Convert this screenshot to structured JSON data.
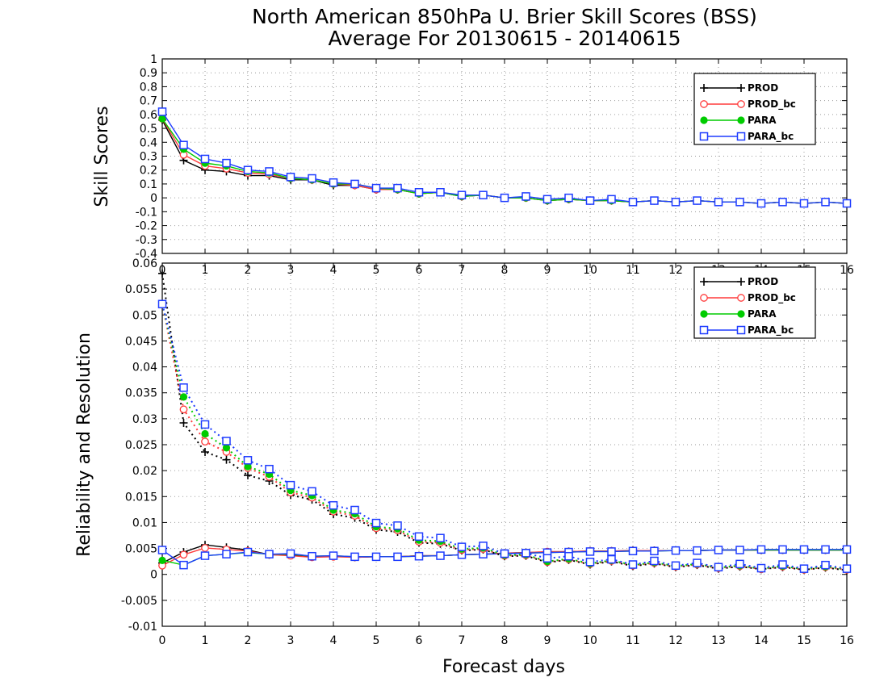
{
  "title_line1": "North American 850hPa U. Brier Skill Scores (BSS)",
  "title_line2": "Average For 20130615 - 20140615",
  "xlabel": "Forecast days",
  "colors": {
    "PROD": "#000000",
    "PROD_bc": "#ff3c3c",
    "PARA": "#00cc00",
    "PARA_bc": "#1e3cff"
  },
  "chart_data": [
    {
      "type": "line",
      "ylabel": "Skill Scores",
      "xlim": [
        0,
        16
      ],
      "ylim": [
        -0.4,
        1
      ],
      "xticks": [
        0,
        1,
        2,
        3,
        4,
        5,
        6,
        7,
        8,
        9,
        10,
        11,
        12,
        13,
        14,
        15,
        16
      ],
      "yticks": [
        -0.4,
        -0.3,
        -0.2,
        -0.1,
        0,
        0.1,
        0.2,
        0.3,
        0.4,
        0.5,
        0.6,
        0.7,
        0.8,
        0.9,
        1
      ],
      "ytick_labels": [
        "-0.4",
        "-0.3",
        "-0.2",
        "-0.1",
        "0",
        "0.1",
        "0.2",
        "0.3",
        "0.4",
        "0.5",
        "0.6",
        "0.7",
        "0.8",
        "0.9",
        "1"
      ],
      "grid": true,
      "legend_position": "top-right",
      "x": [
        0,
        0.5,
        1,
        1.5,
        2,
        2.5,
        3,
        3.5,
        4,
        4.5,
        5,
        5.5,
        6,
        6.5,
        7,
        7.5,
        8,
        8.5,
        9,
        9.5,
        10,
        10.5,
        11,
        11.5,
        12,
        12.5,
        13,
        13.5,
        14,
        14.5,
        15,
        15.5,
        16
      ],
      "series": [
        {
          "name": "PROD",
          "marker": "plus",
          "line": "solid",
          "values": [
            0.56,
            0.27,
            0.2,
            0.19,
            0.16,
            0.16,
            0.13,
            0.13,
            0.09,
            0.09,
            0.06,
            0.06,
            0.03,
            0.04,
            0.01,
            0.02,
            0.0,
            0.0,
            -0.02,
            -0.01,
            -0.02,
            -0.02,
            -0.03,
            -0.02,
            -0.03,
            -0.02,
            -0.03,
            -0.03,
            -0.04,
            -0.03,
            -0.04,
            -0.03,
            -0.04
          ]
        },
        {
          "name": "PROD_bc",
          "marker": "open-circle",
          "line": "solid",
          "values": [
            0.57,
            0.31,
            0.23,
            0.21,
            0.18,
            0.17,
            0.14,
            0.13,
            0.1,
            0.09,
            0.06,
            0.06,
            0.03,
            0.04,
            0.01,
            0.02,
            0.0,
            0.0,
            -0.02,
            -0.01,
            -0.02,
            -0.02,
            -0.03,
            -0.02,
            -0.03,
            -0.02,
            -0.03,
            -0.03,
            -0.04,
            -0.03,
            -0.04,
            -0.03,
            -0.04
          ]
        },
        {
          "name": "PARA",
          "marker": "filled-circle",
          "line": "solid",
          "values": [
            0.57,
            0.35,
            0.25,
            0.23,
            0.19,
            0.18,
            0.14,
            0.13,
            0.1,
            0.1,
            0.07,
            0.06,
            0.03,
            0.04,
            0.01,
            0.02,
            0.0,
            0.0,
            -0.02,
            -0.01,
            -0.02,
            -0.02,
            -0.03,
            -0.02,
            -0.03,
            -0.02,
            -0.03,
            -0.03,
            -0.04,
            -0.03,
            -0.04,
            -0.03,
            -0.04
          ]
        },
        {
          "name": "PARA_bc",
          "marker": "open-square",
          "line": "solid",
          "values": [
            0.62,
            0.38,
            0.28,
            0.25,
            0.2,
            0.19,
            0.15,
            0.14,
            0.11,
            0.1,
            0.07,
            0.07,
            0.04,
            0.04,
            0.02,
            0.02,
            0.0,
            0.01,
            -0.01,
            0.0,
            -0.02,
            -0.01,
            -0.03,
            -0.02,
            -0.03,
            -0.02,
            -0.03,
            -0.03,
            -0.04,
            -0.03,
            -0.04,
            -0.03,
            -0.04
          ]
        }
      ]
    },
    {
      "type": "line",
      "ylabel": "Reliability and Resolution",
      "xlim": [
        0,
        16
      ],
      "ylim": [
        -0.01,
        0.06
      ],
      "xticks": [
        0,
        1,
        2,
        3,
        4,
        5,
        6,
        7,
        8,
        9,
        10,
        11,
        12,
        13,
        14,
        15,
        16
      ],
      "yticks": [
        -0.01,
        -0.005,
        0,
        0.005,
        0.01,
        0.015,
        0.02,
        0.025,
        0.03,
        0.035,
        0.04,
        0.045,
        0.05,
        0.055,
        0.06
      ],
      "ytick_labels": [
        "-0.01",
        "-0.005",
        "0",
        "0.005",
        "0.01",
        "0.015",
        "0.02",
        "0.025",
        "0.03",
        "0.035",
        "0.04",
        "0.045",
        "0.05",
        "0.055",
        "0.06"
      ],
      "grid": true,
      "legend_position": "top-right",
      "x": [
        0,
        0.5,
        1,
        1.5,
        2,
        2.5,
        3,
        3.5,
        4,
        4.5,
        5,
        5.5,
        6,
        6.5,
        7,
        7.5,
        8,
        8.5,
        9,
        9.5,
        10,
        10.5,
        11,
        11.5,
        12,
        12.5,
        13,
        13.5,
        14,
        14.5,
        15,
        15.5,
        16
      ],
      "series": [
        {
          "name": "PROD",
          "marker": "plus",
          "line": "solid",
          "values": [
            0.0022,
            0.0043,
            0.0057,
            0.0052,
            0.0047,
            0.0038,
            0.0037,
            0.0034,
            0.0035,
            0.0033,
            0.0034,
            0.0034,
            0.0036,
            0.0036,
            0.0038,
            0.0039,
            0.0041,
            0.0042,
            0.0043,
            0.0044,
            0.0045,
            0.0045,
            0.0046,
            0.0046,
            0.0046,
            0.0046,
            0.0047,
            0.0047,
            0.0047,
            0.0047,
            0.0047,
            0.0047,
            0.0047
          ]
        },
        {
          "name": "PROD_bc",
          "marker": "open-circle",
          "line": "solid",
          "values": [
            0.0017,
            0.0038,
            0.0051,
            0.0048,
            0.0045,
            0.0038,
            0.0036,
            0.0033,
            0.0034,
            0.0033,
            0.0034,
            0.0034,
            0.0036,
            0.0036,
            0.0038,
            0.0039,
            0.0041,
            0.0042,
            0.0044,
            0.0044,
            0.0045,
            0.0045,
            0.0046,
            0.0046,
            0.0046,
            0.0046,
            0.0047,
            0.0047,
            0.0047,
            0.0047,
            0.0047,
            0.0047,
            0.0047
          ]
        },
        {
          "name": "PARA",
          "marker": "filled-circle",
          "line": "solid",
          "values": [
            0.0027,
            0.0018,
            0.0036,
            0.0039,
            0.0042,
            0.0039,
            0.0039,
            0.0035,
            0.0036,
            0.0034,
            0.0034,
            0.0034,
            0.0035,
            0.0036,
            0.0038,
            0.0039,
            0.004,
            0.0041,
            0.0042,
            0.0043,
            0.0044,
            0.0044,
            0.0045,
            0.0045,
            0.0046,
            0.0046,
            0.0047,
            0.0047,
            0.0047,
            0.0047,
            0.0047,
            0.0047,
            0.0047
          ]
        },
        {
          "name": "PARA_bc",
          "marker": "open-square",
          "line": "solid",
          "values": [
            0.0047,
            0.0018,
            0.0036,
            0.0039,
            0.0043,
            0.0039,
            0.004,
            0.0035,
            0.0036,
            0.0034,
            0.0034,
            0.0034,
            0.0035,
            0.0036,
            0.0038,
            0.0039,
            0.004,
            0.0041,
            0.0042,
            0.0043,
            0.0044,
            0.0044,
            0.0045,
            0.0045,
            0.0046,
            0.0046,
            0.0047,
            0.0047,
            0.0048,
            0.0048,
            0.0048,
            0.0048,
            0.0048
          ]
        },
        {
          "name": "PROD",
          "marker": "plus",
          "line": "dotted",
          "values": [
            0.058,
            0.0292,
            0.0236,
            0.0221,
            0.0191,
            0.018,
            0.0153,
            0.0144,
            0.0116,
            0.0109,
            0.0086,
            0.0082,
            0.0061,
            0.0059,
            0.0046,
            0.0048,
            0.0035,
            0.0036,
            0.0023,
            0.0028,
            0.0019,
            0.0025,
            0.0016,
            0.0021,
            0.0014,
            0.0018,
            0.0011,
            0.0015,
            0.001,
            0.0014,
            0.0009,
            0.0013,
            0.0008
          ]
        },
        {
          "name": "PROD_bc",
          "marker": "open-circle",
          "line": "dotted",
          "values": [
            0.0521,
            0.0318,
            0.0256,
            0.0236,
            0.0205,
            0.0188,
            0.0158,
            0.0148,
            0.0121,
            0.0113,
            0.0089,
            0.0085,
            0.0063,
            0.0061,
            0.0047,
            0.0049,
            0.0036,
            0.0037,
            0.0024,
            0.0029,
            0.002,
            0.0026,
            0.0017,
            0.0022,
            0.0015,
            0.0019,
            0.0012,
            0.0016,
            0.001,
            0.0015,
            0.0009,
            0.0014,
            0.0009
          ]
        },
        {
          "name": "PARA",
          "marker": "filled-circle",
          "line": "dotted",
          "values": [
            0.0521,
            0.0342,
            0.0271,
            0.0244,
            0.0208,
            0.0193,
            0.0162,
            0.0152,
            0.0124,
            0.0117,
            0.0092,
            0.0088,
            0.0066,
            0.0064,
            0.0049,
            0.0051,
            0.0037,
            0.0038,
            0.0025,
            0.003,
            0.0021,
            0.0027,
            0.0018,
            0.0023,
            0.0016,
            0.002,
            0.0013,
            0.0017,
            0.0011,
            0.0016,
            0.001,
            0.0015,
            0.001
          ]
        },
        {
          "name": "PARA_bc",
          "marker": "open-square",
          "line": "dotted",
          "values": [
            0.0521,
            0.036,
            0.0289,
            0.0257,
            0.022,
            0.0203,
            0.0172,
            0.016,
            0.0133,
            0.0124,
            0.0099,
            0.0094,
            0.0073,
            0.007,
            0.0053,
            0.0055,
            0.004,
            0.0041,
            0.0031,
            0.0035,
            0.0024,
            0.0029,
            0.0019,
            0.0026,
            0.0017,
            0.0022,
            0.0014,
            0.002,
            0.0012,
            0.0019,
            0.0011,
            0.0018,
            0.0011
          ]
        }
      ]
    }
  ]
}
